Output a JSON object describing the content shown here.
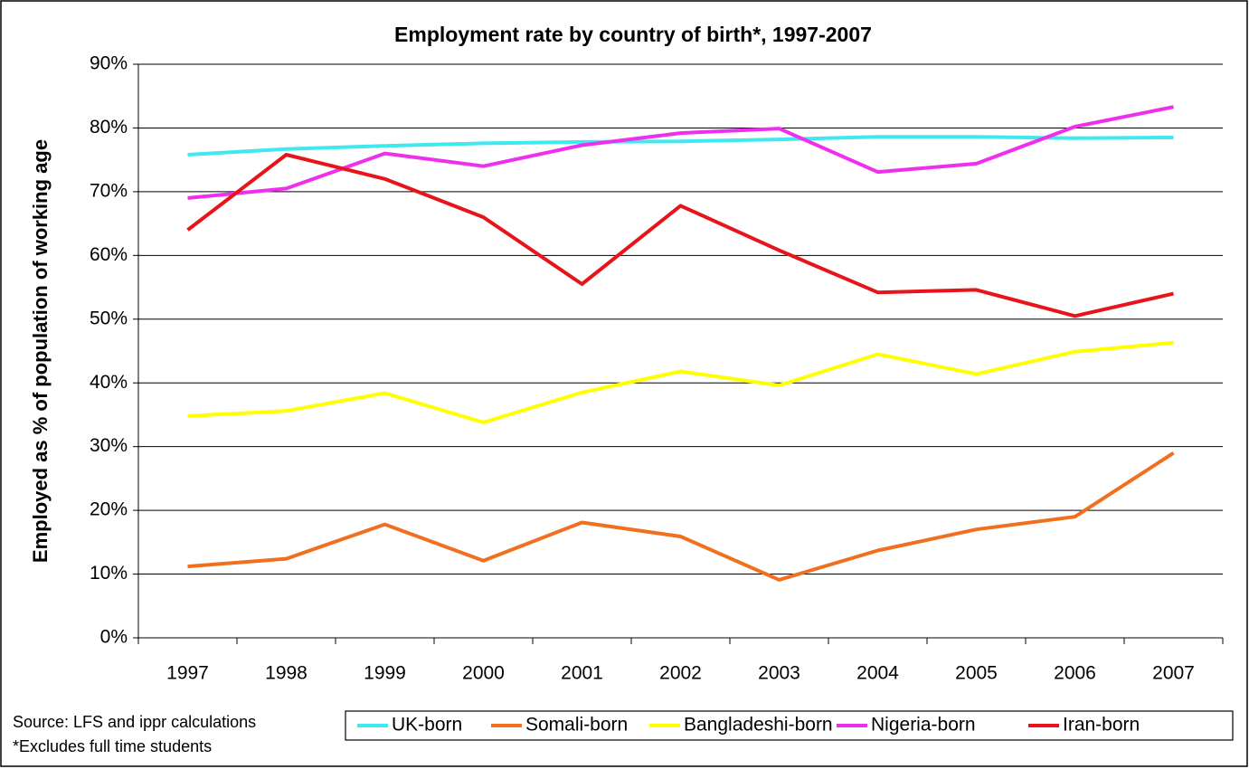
{
  "chart_data": {
    "type": "line",
    "title": "Employment rate by country of birth*, 1997-2007",
    "y_label": "Employed as % of population of working age",
    "categories": [
      "1997",
      "1998",
      "1999",
      "2000",
      "2001",
      "2002",
      "2003",
      "2004",
      "2005",
      "2006",
      "2007"
    ],
    "series": [
      {
        "name": "UK-born",
        "color": "#40e8f0",
        "values": [
          75.8,
          76.7,
          77.2,
          77.6,
          77.8,
          77.9,
          78.2,
          78.6,
          78.6,
          78.4,
          78.5
        ]
      },
      {
        "name": "Somali-born",
        "color": "#f07020",
        "values": [
          11.2,
          12.4,
          17.8,
          12.1,
          18.1,
          15.9,
          9.1,
          13.7,
          17.0,
          19.0,
          29.0
        ]
      },
      {
        "name": "Bangladeshi-born",
        "color": "#ffff00",
        "values": [
          34.8,
          35.6,
          38.4,
          33.8,
          38.5,
          41.8,
          39.6,
          44.5,
          41.4,
          44.9,
          46.3
        ]
      },
      {
        "name": "Nigeria-born",
        "color": "#ee30ee",
        "values": [
          69.0,
          70.5,
          76.0,
          74.0,
          77.3,
          79.2,
          79.9,
          73.1,
          74.4,
          80.2,
          83.3
        ]
      },
      {
        "name": "Iran-born",
        "color": "#e8141c",
        "values": [
          64.0,
          75.8,
          72.0,
          66.0,
          55.5,
          67.8,
          60.8,
          54.2,
          54.6,
          50.5,
          54.0
        ]
      }
    ],
    "ylim": [
      0,
      90
    ],
    "yticks": [
      {
        "value": 0,
        "label": "0%"
      },
      {
        "value": 10,
        "label": "10%"
      },
      {
        "value": 20,
        "label": "20%"
      },
      {
        "value": 30,
        "label": "30%"
      },
      {
        "value": 40,
        "label": "40%"
      },
      {
        "value": 50,
        "label": "50%"
      },
      {
        "value": 60,
        "label": "60%"
      },
      {
        "value": 70,
        "label": "70%"
      },
      {
        "value": 80,
        "label": "80%"
      },
      {
        "value": 90,
        "label": "90%"
      }
    ],
    "grid": true,
    "notes": [
      "Source: LFS and ippr calculations",
      "*Excludes full time students"
    ]
  }
}
